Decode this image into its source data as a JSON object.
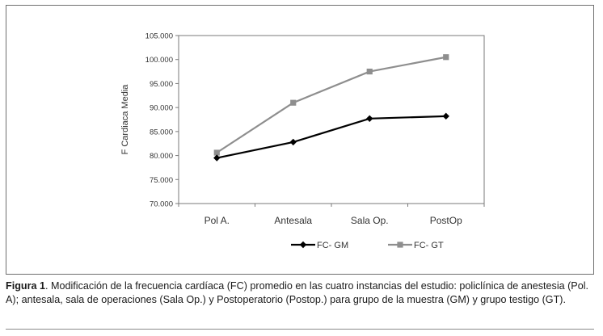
{
  "chart_data": {
    "type": "line",
    "categories": [
      "Pol A.",
      "Antesala",
      "Sala Op.",
      "PostOp"
    ],
    "series": [
      {
        "name": "FC- GM",
        "values": [
          79.5,
          82.8,
          87.7,
          88.2
        ],
        "color": "#000000",
        "marker": "diamond"
      },
      {
        "name": "FC- GT",
        "values": [
          80.6,
          91.0,
          97.5,
          100.5
        ],
        "color": "#8e8e8e",
        "marker": "square"
      }
    ],
    "ylabel": "F Cardiaca Media",
    "xlabel": "",
    "ylim": [
      70,
      105
    ],
    "yticks": [
      70,
      75,
      80,
      85,
      90,
      95,
      100,
      105
    ],
    "ytick_labels": [
      "70.000",
      "75.000",
      "80.000",
      "85.000",
      "90.000",
      "95.000",
      "100.000",
      "105.000"
    ],
    "grid": false,
    "legend_position": "bottom-center"
  },
  "caption": {
    "label": "Figura 1",
    "text": ". Modificación de la frecuencia cardíaca (FC) promedio en las cuatro instancias del estudio: policlínica de anestesia (Pol. A); antesala, sala de operaciones (Sala Op.) y Postoperatorio (Postop.) para grupo de la muestra (GM) y grupo testigo (GT)."
  }
}
